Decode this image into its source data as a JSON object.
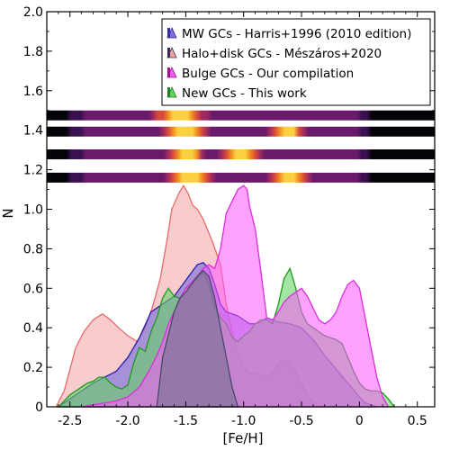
{
  "chart_data": {
    "type": "area",
    "xlabel": "[Fe/H]",
    "ylabel": "N",
    "xlim": [
      -2.7,
      0.65
    ],
    "ylim": [
      0,
      2.0
    ],
    "x_ticks": [
      -2.5,
      -2.0,
      -1.5,
      -1.0,
      -0.5,
      0.0,
      0.5
    ],
    "x_tick_labels": [
      "-2.5",
      "-2.0",
      "-1.5",
      "-1.0",
      "-0.5",
      "0",
      "0.5"
    ],
    "y_ticks": [
      0,
      0.2,
      0.4,
      0.6,
      0.8,
      1.0,
      1.2,
      1.4,
      1.6,
      1.8,
      2.0
    ],
    "y_tick_labels": [
      "0",
      "0.2",
      "0.4",
      "0.6",
      "0.8",
      "1.0",
      "1.2",
      "1.4",
      "1.6",
      "1.8",
      "2.0"
    ],
    "legend": {
      "placement": "top-right",
      "entries": [
        {
          "label": "MW GCs - Harris+1996 (2010 edition)",
          "colors": [
            "#7b6fd8",
            "#3a2aa0"
          ]
        },
        {
          "label": "Halo+disk GCs - Mészáros+2020",
          "colors": [
            "#f2a0a0",
            "#3a2a55"
          ]
        },
        {
          "label": "Bulge GCs - Our compilation",
          "colors": [
            "#f060f0",
            "#a01090"
          ]
        },
        {
          "label": "New GCs - This work",
          "colors": [
            "#60d060",
            "#208020"
          ]
        }
      ]
    },
    "series": [
      {
        "fill": "#f4aaaa",
        "fill_opacity": 0.6,
        "stroke": "#e86a6a",
        "x": [
          -2.62,
          -2.55,
          -2.45,
          -2.38,
          -2.3,
          -2.22,
          -2.15,
          -2.08,
          -2.0,
          -1.92,
          -1.85,
          -1.78,
          -1.72,
          -1.66,
          -1.62,
          -1.56,
          -1.52,
          -1.48,
          -1.44,
          -1.4,
          -1.35,
          -1.3,
          -1.26,
          -1.2,
          -1.15,
          -1.1,
          -1.05,
          -1.0,
          -0.95,
          -0.9,
          -0.85,
          -0.8,
          -0.75,
          -0.7,
          -0.65,
          -0.6,
          -0.55,
          -0.5,
          -0.45,
          -0.4,
          -0.35,
          -0.3,
          -0.28
        ],
        "y": [
          0.0,
          0.08,
          0.3,
          0.38,
          0.44,
          0.47,
          0.44,
          0.4,
          0.36,
          0.33,
          0.4,
          0.52,
          0.65,
          0.85,
          1.0,
          1.08,
          1.12,
          1.08,
          1.02,
          1.0,
          0.95,
          0.88,
          0.82,
          0.72,
          0.52,
          0.38,
          0.28,
          0.2,
          0.17,
          0.17,
          0.16,
          0.15,
          0.17,
          0.22,
          0.24,
          0.23,
          0.18,
          0.12,
          0.06,
          0.03,
          0.01,
          0.0,
          0.0
        ]
      },
      {
        "fill": "#7a70dc",
        "fill_opacity": 0.65,
        "stroke": "#2a1faa",
        "x": [
          -2.6,
          -2.5,
          -2.4,
          -2.3,
          -2.2,
          -2.1,
          -2.0,
          -1.9,
          -1.8,
          -1.7,
          -1.6,
          -1.55,
          -1.5,
          -1.45,
          -1.4,
          -1.35,
          -1.3,
          -1.25,
          -1.2,
          -1.15,
          -1.1,
          -1.05,
          -1.0,
          -0.95,
          -0.9,
          -0.85,
          -0.8,
          -0.75,
          -0.7,
          -0.6,
          -0.5,
          -0.4,
          -0.3,
          -0.2,
          -0.1,
          0.0,
          0.05,
          0.1,
          0.15
        ],
        "y": [
          0.0,
          0.04,
          0.08,
          0.12,
          0.15,
          0.18,
          0.25,
          0.35,
          0.48,
          0.52,
          0.56,
          0.6,
          0.64,
          0.68,
          0.72,
          0.73,
          0.7,
          0.62,
          0.52,
          0.48,
          0.47,
          0.46,
          0.44,
          0.42,
          0.42,
          0.43,
          0.45,
          0.44,
          0.43,
          0.42,
          0.4,
          0.34,
          0.26,
          0.19,
          0.12,
          0.05,
          0.02,
          0.01,
          0.0
        ]
      },
      {
        "fill": "#66d466",
        "fill_opacity": 0.6,
        "stroke": "#1f9a1f",
        "x": [
          -2.6,
          -2.55,
          -2.5,
          -2.45,
          -2.4,
          -2.35,
          -2.3,
          -2.25,
          -2.2,
          -2.15,
          -2.1,
          -2.05,
          -2.0,
          -1.95,
          -1.9,
          -1.85,
          -1.8,
          -1.75,
          -1.7,
          -1.65,
          -1.6,
          -1.55,
          -1.5,
          -1.45,
          -1.4,
          -1.35,
          -1.3,
          -1.25,
          -1.2,
          -1.15,
          -1.1,
          -1.05,
          -1.0,
          -0.95,
          -0.9,
          -0.85,
          -0.8,
          -0.75,
          -0.7,
          -0.65,
          -0.6,
          -0.55,
          -0.5,
          -0.45,
          -0.4,
          -0.35,
          -0.3,
          -0.25,
          -0.2,
          -0.15,
          -0.1,
          -0.05,
          0.0,
          0.05,
          0.1,
          0.15,
          0.2,
          0.25,
          0.3
        ],
        "y": [
          0.0,
          0.03,
          0.06,
          0.08,
          0.1,
          0.12,
          0.13,
          0.15,
          0.15,
          0.12,
          0.1,
          0.09,
          0.11,
          0.22,
          0.3,
          0.28,
          0.38,
          0.45,
          0.55,
          0.6,
          0.56,
          0.55,
          0.6,
          0.62,
          0.65,
          0.68,
          0.62,
          0.5,
          0.45,
          0.42,
          0.35,
          0.33,
          0.36,
          0.38,
          0.42,
          0.44,
          0.44,
          0.42,
          0.52,
          0.65,
          0.7,
          0.6,
          0.48,
          0.42,
          0.4,
          0.38,
          0.36,
          0.35,
          0.34,
          0.32,
          0.25,
          0.18,
          0.12,
          0.09,
          0.08,
          0.08,
          0.07,
          0.04,
          0.0
        ]
      },
      {
        "fill": "#ff55ff",
        "fill_opacity": 0.55,
        "stroke": "#d92fd9",
        "x": [
          -2.4,
          -2.3,
          -2.2,
          -2.1,
          -2.0,
          -1.9,
          -1.8,
          -1.75,
          -1.7,
          -1.65,
          -1.6,
          -1.55,
          -1.5,
          -1.45,
          -1.4,
          -1.35,
          -1.3,
          -1.25,
          -1.2,
          -1.15,
          -1.1,
          -1.05,
          -1.0,
          -0.97,
          -0.95,
          -0.9,
          -0.85,
          -0.8,
          -0.75,
          -0.7,
          -0.65,
          -0.6,
          -0.55,
          -0.5,
          -0.45,
          -0.4,
          -0.35,
          -0.3,
          -0.25,
          -0.2,
          -0.15,
          -0.1,
          -0.05,
          0.0,
          0.05,
          0.1,
          0.15,
          0.2,
          0.25
        ],
        "y": [
          0.0,
          0.01,
          0.02,
          0.03,
          0.05,
          0.1,
          0.2,
          0.26,
          0.33,
          0.42,
          0.48,
          0.55,
          0.6,
          0.63,
          0.66,
          0.7,
          0.72,
          0.7,
          0.8,
          0.98,
          1.04,
          1.1,
          1.12,
          1.1,
          1.02,
          0.9,
          0.68,
          0.45,
          0.44,
          0.48,
          0.53,
          0.56,
          0.58,
          0.6,
          0.56,
          0.5,
          0.44,
          0.42,
          0.44,
          0.48,
          0.56,
          0.62,
          0.64,
          0.6,
          0.45,
          0.3,
          0.15,
          0.05,
          0.0
        ]
      },
      {
        "fill": "#5a6a7e",
        "fill_opacity": 0.45,
        "stroke": "#4a4a6a",
        "x": [
          -1.75,
          -1.7,
          -1.6,
          -1.55,
          -1.5,
          -1.45,
          -1.4,
          -1.35,
          -1.3,
          -1.25,
          -1.2,
          -1.15,
          -1.1,
          -1.05
        ],
        "y": [
          0.0,
          0.25,
          0.48,
          0.55,
          0.58,
          0.62,
          0.66,
          0.69,
          0.66,
          0.55,
          0.4,
          0.25,
          0.1,
          0.0
        ]
      }
    ],
    "strips": [
      {
        "y": 1.475,
        "hotspots": [
          {
            "x": -1.55,
            "w": 0.42
          }
        ]
      },
      {
        "y": 1.393,
        "hotspots": [
          {
            "x": -1.5,
            "w": 0.35
          },
          {
            "x": -0.62,
            "w": 0.28
          }
        ]
      },
      {
        "y": 1.278,
        "hotspots": [
          {
            "x": -1.5,
            "w": 0.3
          },
          {
            "x": -1.02,
            "w": 0.35
          }
        ]
      },
      {
        "y": 1.16,
        "hotspots": [
          {
            "x": -1.45,
            "w": 0.38
          },
          {
            "x": -0.6,
            "w": 0.35
          }
        ]
      }
    ]
  }
}
